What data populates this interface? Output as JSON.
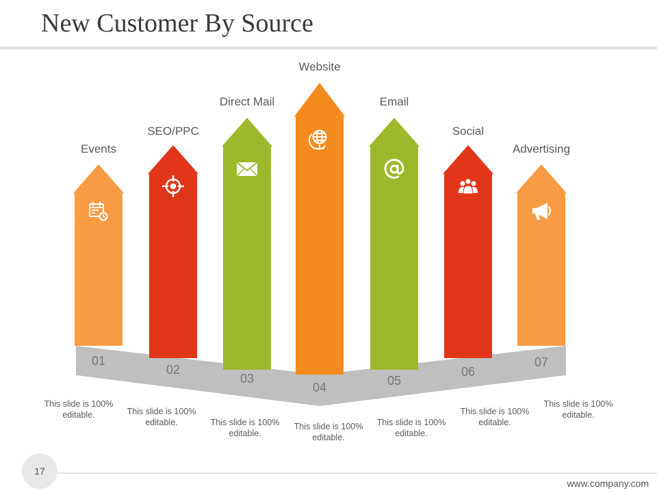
{
  "slide": {
    "title": "New Customer By Source",
    "page_number": "17",
    "footer_url": "www.company.com"
  },
  "colors": {
    "light_orange": "#F79B45",
    "red": "#E2361A",
    "green": "#9DB82A",
    "orange": "#F58A1F",
    "band": "#BFBFBF",
    "band_text": "#777777"
  },
  "sources": [
    {
      "label": "Events",
      "number": "01",
      "caption": "This slide is 100% editable.",
      "icon": "calendar-icon",
      "color": "#F79B45"
    },
    {
      "label": "SEO/PPC",
      "number": "02",
      "caption": "This slide is 100% editable.",
      "icon": "target-icon",
      "color": "#E2361A"
    },
    {
      "label": "Direct Mail",
      "number": "03",
      "caption": "This slide is 100% editable.",
      "icon": "envelope-icon",
      "color": "#9DB82A"
    },
    {
      "label": "Website",
      "number": "04",
      "caption": "This slide is 100% editable.",
      "icon": "globe-icon",
      "color": "#F58A1F"
    },
    {
      "label": "Email",
      "number": "05",
      "caption": "This slide is 100% editable.",
      "icon": "at-sign-icon",
      "color": "#9DB82A"
    },
    {
      "label": "Social",
      "number": "06",
      "caption": "This slide is 100% editable.",
      "icon": "people-icon",
      "color": "#E2361A"
    },
    {
      "label": "Advertising",
      "number": "07",
      "caption": "This slide is 100% editable.",
      "icon": "megaphone-icon",
      "color": "#F79B45"
    }
  ]
}
